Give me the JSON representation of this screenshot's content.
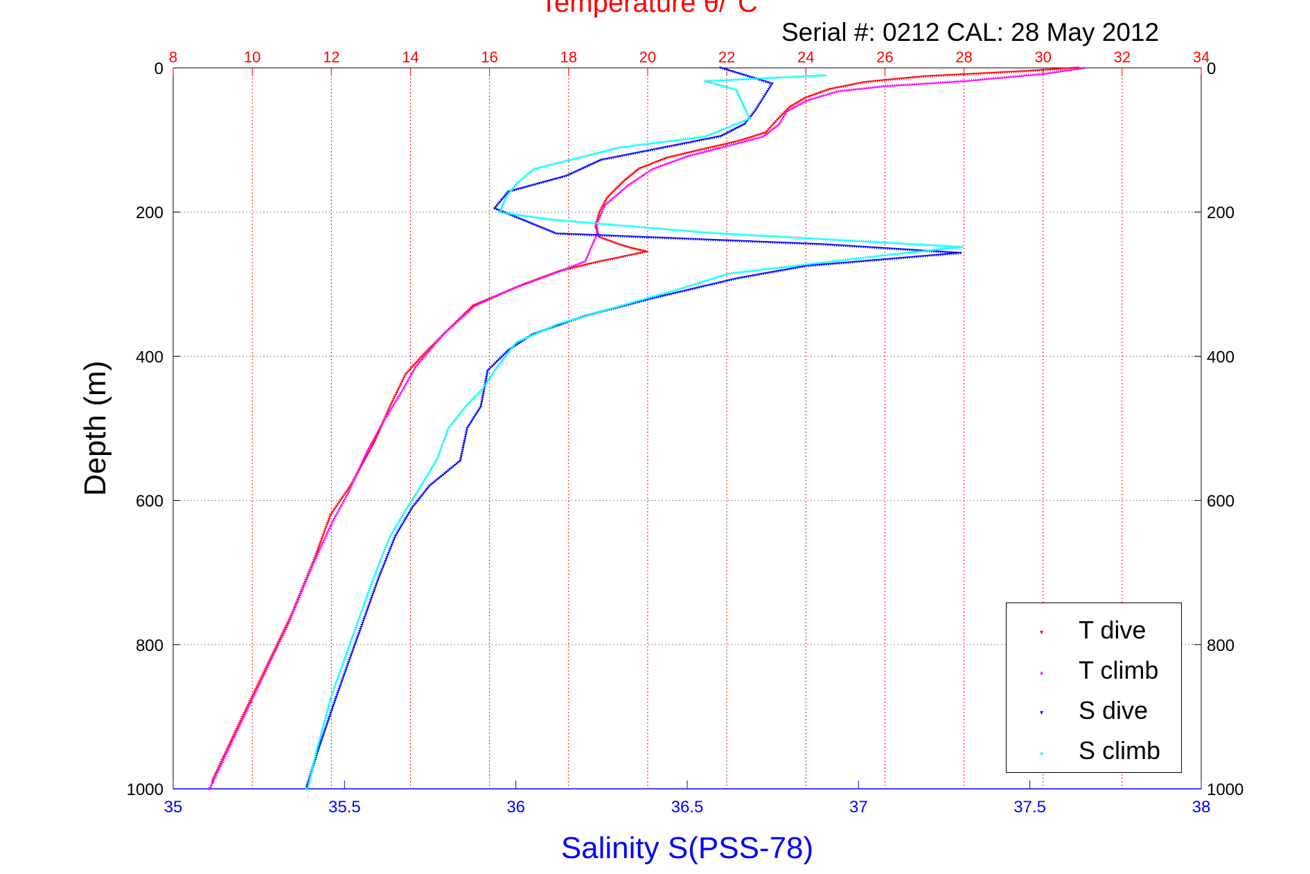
{
  "titles": {
    "top": "Temperature θ/°C",
    "serial": "Serial #: 0212  CAL: 28 May 2012"
  },
  "axes": {
    "ylabel": "Depth (m)",
    "xlabel_bottom": "Salinity S(PSS-78)",
    "y_ticks": [
      0,
      200,
      400,
      600,
      800,
      1000
    ],
    "temp_ticks": [
      8,
      10,
      12,
      14,
      16,
      18,
      20,
      22,
      24,
      26,
      28,
      30,
      32,
      34
    ],
    "sal_ticks": [
      "35",
      "35.5",
      "36",
      "36.5",
      "37",
      "37.5",
      "38"
    ]
  },
  "legend": {
    "items": [
      {
        "label": "T dive",
        "color": "#ff0000",
        "marker": "▾"
      },
      {
        "label": "T climb",
        "color": "#ff00ff",
        "marker": "▴"
      },
      {
        "label": "S dive",
        "color": "#0000ff",
        "marker": "▾"
      },
      {
        "label": "S climb",
        "color": "#00ffff",
        "marker": "▴"
      }
    ]
  },
  "colors": {
    "temperature_axis": "#ff0000",
    "salinity_axis": "#0000ff",
    "grid": "#888888"
  },
  "chart_data": {
    "type": "scatter",
    "ylim": [
      1000,
      0
    ],
    "temperature_xlim": [
      8,
      34
    ],
    "salinity_xlim": [
      35,
      38
    ],
    "grid": true,
    "legend_position": "bottom-right",
    "series": [
      {
        "name": "T dive",
        "axis": "temperature",
        "marker": "triangle-down",
        "color": "#ff0000",
        "points": [
          [
            30.9,
            0
          ],
          [
            29.5,
            5
          ],
          [
            27.0,
            12
          ],
          [
            25.5,
            20
          ],
          [
            24.6,
            30
          ],
          [
            24.0,
            42
          ],
          [
            23.6,
            55
          ],
          [
            23.3,
            72
          ],
          [
            23.0,
            90
          ],
          [
            22.3,
            102
          ],
          [
            21.5,
            112
          ],
          [
            20.5,
            125
          ],
          [
            19.8,
            140
          ],
          [
            19.4,
            158
          ],
          [
            19.0,
            180
          ],
          [
            18.8,
            200
          ],
          [
            18.7,
            220
          ],
          [
            18.8,
            235
          ],
          [
            19.3,
            245
          ],
          [
            19.6,
            250
          ],
          [
            20.0,
            255
          ],
          [
            19.4,
            262
          ],
          [
            18.7,
            270
          ],
          [
            17.8,
            282
          ],
          [
            16.9,
            300
          ],
          [
            15.6,
            330
          ],
          [
            15.0,
            362
          ],
          [
            14.4,
            395
          ],
          [
            13.9,
            425
          ],
          [
            13.5,
            470
          ],
          [
            13.1,
            520
          ],
          [
            12.5,
            580
          ],
          [
            12.0,
            620
          ],
          [
            11.6,
            680
          ],
          [
            11.0,
            760
          ],
          [
            10.3,
            840
          ],
          [
            9.6,
            920
          ],
          [
            9.0,
            990
          ]
        ]
      },
      {
        "name": "T climb",
        "axis": "temperature",
        "marker": "triangle-up",
        "color": "#ff00ff",
        "points": [
          [
            31.0,
            0
          ],
          [
            30.0,
            8
          ],
          [
            28.0,
            18
          ],
          [
            26.0,
            25
          ],
          [
            24.8,
            32
          ],
          [
            24.0,
            45
          ],
          [
            23.5,
            60
          ],
          [
            23.3,
            78
          ],
          [
            22.9,
            95
          ],
          [
            22.0,
            108
          ],
          [
            21.0,
            122
          ],
          [
            20.1,
            140
          ],
          [
            19.5,
            162
          ],
          [
            18.9,
            190
          ],
          [
            18.7,
            215
          ],
          [
            18.7,
            230
          ],
          [
            18.4,
            268
          ],
          [
            17.5,
            287
          ],
          [
            16.6,
            305
          ],
          [
            15.6,
            330
          ],
          [
            14.8,
            370
          ],
          [
            14.1,
            415
          ],
          [
            13.8,
            445
          ],
          [
            13.3,
            490
          ],
          [
            12.9,
            530
          ],
          [
            12.4,
            590
          ],
          [
            12.0,
            630
          ],
          [
            11.5,
            690
          ],
          [
            10.9,
            770
          ],
          [
            10.2,
            850
          ],
          [
            9.5,
            930
          ],
          [
            8.9,
            1000
          ]
        ]
      },
      {
        "name": "S dive",
        "axis": "salinity",
        "marker": "triangle-down",
        "color": "#0000ff",
        "points": [
          [
            36.6,
            0
          ],
          [
            36.75,
            22
          ],
          [
            36.72,
            45
          ],
          [
            36.7,
            60
          ],
          [
            36.67,
            78
          ],
          [
            36.6,
            95
          ],
          [
            36.42,
            112
          ],
          [
            36.25,
            128
          ],
          [
            36.15,
            150
          ],
          [
            35.98,
            172
          ],
          [
            35.94,
            195
          ],
          [
            36.12,
            230
          ],
          [
            36.9,
            245
          ],
          [
            37.3,
            257
          ],
          [
            36.85,
            275
          ],
          [
            36.65,
            292
          ],
          [
            36.4,
            320
          ],
          [
            36.2,
            345
          ],
          [
            36.05,
            370
          ],
          [
            35.98,
            392
          ],
          [
            35.92,
            420
          ],
          [
            35.9,
            470
          ],
          [
            35.86,
            500
          ],
          [
            35.84,
            545
          ],
          [
            35.75,
            580
          ],
          [
            35.7,
            610
          ],
          [
            35.65,
            650
          ],
          [
            35.6,
            710
          ],
          [
            35.54,
            790
          ],
          [
            35.48,
            870
          ],
          [
            35.43,
            940
          ],
          [
            35.39,
            1000
          ]
        ]
      },
      {
        "name": "S climb",
        "axis": "salinity",
        "marker": "triangle-up",
        "color": "#00ffff",
        "points": [
          [
            36.9,
            10
          ],
          [
            36.55,
            18
          ],
          [
            36.64,
            30
          ],
          [
            36.66,
            50
          ],
          [
            36.68,
            70
          ],
          [
            36.55,
            95
          ],
          [
            36.3,
            110
          ],
          [
            36.05,
            140
          ],
          [
            36.0,
            160
          ],
          [
            35.97,
            178
          ],
          [
            35.95,
            200
          ],
          [
            36.1,
            210
          ],
          [
            36.55,
            228
          ],
          [
            37.0,
            240
          ],
          [
            37.3,
            248
          ],
          [
            37.1,
            258
          ],
          [
            36.62,
            285
          ],
          [
            36.45,
            310
          ],
          [
            36.3,
            330
          ],
          [
            36.12,
            355
          ],
          [
            36.0,
            380
          ],
          [
            35.95,
            410
          ],
          [
            35.9,
            445
          ],
          [
            35.85,
            470
          ],
          [
            35.8,
            500
          ],
          [
            35.77,
            540
          ],
          [
            35.72,
            580
          ],
          [
            35.68,
            610
          ],
          [
            35.63,
            650
          ],
          [
            35.58,
            710
          ],
          [
            35.52,
            790
          ],
          [
            35.46,
            870
          ],
          [
            35.42,
            940
          ],
          [
            35.39,
            1000
          ]
        ]
      }
    ]
  }
}
